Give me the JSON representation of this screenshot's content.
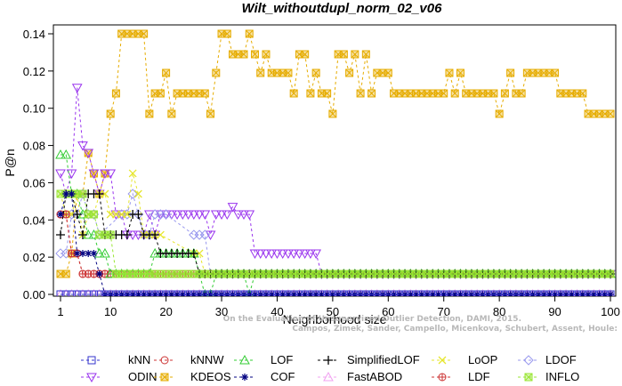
{
  "chart_data": {
    "type": "line",
    "title": "Wilt_withoutdupl_norm_02_v06",
    "xlabel": "Neighborhood size",
    "ylabel": "P@n",
    "xlim": [
      1,
      100
    ],
    "ylim": [
      0,
      0.145
    ],
    "xticks": [
      1,
      10,
      20,
      30,
      40,
      50,
      60,
      70,
      80,
      90,
      100
    ],
    "yticks": [
      0.0,
      0.02,
      0.04,
      0.06,
      0.08,
      0.1,
      0.12,
      0.14
    ],
    "ytick_labels": [
      "0.00",
      "0.02",
      "0.04",
      "0.06",
      "0.08",
      "0.10",
      "0.12",
      "0.14"
    ],
    "grid": false,
    "legend_position": "bottom",
    "credit_lines": [
      "Campos, Zimek, Sander, Campello, Micenkova, Schubert, Assent, Houle:",
      "On the Evaluation of Unsupervised Outlier Detection, DAMI, 2015."
    ],
    "series": [
      {
        "name": "kNN",
        "color": "#3333cc",
        "marker": "square",
        "points": [
          [
            1,
            0
          ],
          [
            100,
            0
          ]
        ]
      },
      {
        "name": "kNNW",
        "color": "#cc3333",
        "marker": "circle",
        "points": [
          [
            1,
            0.043
          ],
          [
            2,
            0.043
          ],
          [
            3,
            0.022
          ],
          [
            4,
            0.022
          ],
          [
            5,
            0.011
          ],
          [
            6,
            0.011
          ],
          [
            8,
            0.011
          ],
          [
            10,
            0.011
          ],
          [
            100,
            0.011
          ]
        ]
      },
      {
        "name": "LOF",
        "color": "#33cc33",
        "marker": "triangle",
        "points": [
          [
            1,
            0.075
          ],
          [
            2,
            0.075
          ],
          [
            3,
            0.054
          ],
          [
            4,
            0.054
          ],
          [
            5,
            0.043
          ],
          [
            6,
            0.032
          ],
          [
            7,
            0.032
          ],
          [
            8,
            0.022
          ],
          [
            9,
            0.022
          ],
          [
            10,
            0.011
          ],
          [
            16,
            0.011
          ],
          [
            17,
            0.011
          ],
          [
            18,
            0.022
          ],
          [
            25,
            0.022
          ],
          [
            26,
            0.011
          ],
          [
            27,
            0
          ],
          [
            28,
            0
          ],
          [
            29,
            0.011
          ],
          [
            34,
            0.011
          ],
          [
            35,
            0
          ],
          [
            36,
            0.011
          ],
          [
            100,
            0.011
          ]
        ]
      },
      {
        "name": "SimplifiedLOF",
        "color": "#000000",
        "marker": "plus",
        "points": [
          [
            1,
            0.032
          ],
          [
            2,
            0.054
          ],
          [
            3,
            0.054
          ],
          [
            4,
            0.043
          ],
          [
            5,
            0.032
          ],
          [
            6,
            0.054
          ],
          [
            7,
            0.054
          ],
          [
            8,
            0.054
          ],
          [
            9,
            0.032
          ],
          [
            10,
            0.032
          ],
          [
            13,
            0.032
          ],
          [
            14,
            0.043
          ],
          [
            15,
            0.043
          ],
          [
            16,
            0.032
          ],
          [
            18,
            0.032
          ],
          [
            19,
            0.022
          ],
          [
            25,
            0.022
          ],
          [
            26,
            0.011
          ],
          [
            100,
            0.011
          ]
        ]
      },
      {
        "name": "LoOP",
        "color": "#e6e62e",
        "marker": "x",
        "points": [
          [
            1,
            0.054
          ],
          [
            2,
            0.043
          ],
          [
            3,
            0.043
          ],
          [
            4,
            0.054
          ],
          [
            5,
            0.032
          ],
          [
            6,
            0.043
          ],
          [
            7,
            0.043
          ],
          [
            8,
            0.054
          ],
          [
            9,
            0.054
          ],
          [
            10,
            0.043
          ],
          [
            13,
            0.043
          ],
          [
            14,
            0.065
          ],
          [
            15,
            0.054
          ],
          [
            16,
            0.032
          ],
          [
            18,
            0.032
          ],
          [
            19,
            0.032
          ],
          [
            25,
            0.022
          ],
          [
            26,
            0.022
          ],
          [
            27,
            0.011
          ],
          [
            100,
            0.011
          ]
        ]
      },
      {
        "name": "LDOF",
        "color": "#9999ee",
        "marker": "diamond",
        "points": [
          [
            1,
            0.022
          ],
          [
            2,
            0.022
          ],
          [
            3,
            0.043
          ],
          [
            4,
            0.043
          ],
          [
            5,
            0.054
          ],
          [
            6,
            0.043
          ],
          [
            7,
            0.043
          ],
          [
            8,
            0.032
          ],
          [
            12,
            0.043
          ],
          [
            13,
            0.043
          ],
          [
            14,
            0.054
          ],
          [
            15,
            0.043
          ],
          [
            16,
            0.032
          ],
          [
            17,
            0.032
          ],
          [
            18,
            0.043
          ],
          [
            19,
            0.043
          ],
          [
            20,
            0.043
          ],
          [
            25,
            0.032
          ],
          [
            26,
            0.032
          ],
          [
            27,
            0.032
          ],
          [
            28,
            0.011
          ],
          [
            100,
            0.011
          ]
        ]
      },
      {
        "name": "ODIN",
        "color": "#9933ee",
        "marker": "triangle-down",
        "points": [
          [
            1,
            0.065
          ],
          [
            2,
            0.054
          ],
          [
            3,
            0.065
          ],
          [
            4,
            0.111
          ],
          [
            5,
            0.08
          ],
          [
            6,
            0.076
          ],
          [
            7,
            0.065
          ],
          [
            8,
            0.054
          ],
          [
            9,
            0.065
          ],
          [
            10,
            0.065
          ],
          [
            11,
            0.043
          ],
          [
            12,
            0.043
          ],
          [
            13,
            0.032
          ],
          [
            14,
            0.032
          ],
          [
            15,
            0.032
          ],
          [
            16,
            0.032
          ],
          [
            17,
            0.043
          ],
          [
            18,
            0.032
          ],
          [
            19,
            0.043
          ],
          [
            20,
            0.043
          ],
          [
            21,
            0.043
          ],
          [
            22,
            0.043
          ],
          [
            23,
            0.043
          ],
          [
            24,
            0.043
          ],
          [
            25,
            0.043
          ],
          [
            26,
            0.043
          ],
          [
            27,
            0.043
          ],
          [
            28,
            0.032
          ],
          [
            29,
            0.043
          ],
          [
            30,
            0.043
          ],
          [
            31,
            0.043
          ],
          [
            32,
            0.047
          ],
          [
            33,
            0.043
          ],
          [
            34,
            0.043
          ],
          [
            35,
            0.043
          ],
          [
            36,
            0.022
          ],
          [
            37,
            0.022
          ],
          [
            38,
            0.022
          ],
          [
            39,
            0.022
          ],
          [
            40,
            0.022
          ],
          [
            41,
            0.022
          ],
          [
            42,
            0.022
          ],
          [
            43,
            0.022
          ],
          [
            44,
            0.022
          ],
          [
            45,
            0.022
          ],
          [
            46,
            0.022
          ],
          [
            47,
            0.022
          ],
          [
            48,
            0.011
          ],
          [
            100,
            0.011
          ]
        ]
      },
      {
        "name": "KDEOS",
        "color": "#e6ac00",
        "marker": "square-x",
        "points": [
          [
            1,
            0.011
          ],
          [
            2,
            0.011
          ],
          [
            3,
            0.022
          ],
          [
            4,
            0.054
          ],
          [
            5,
            0.054
          ],
          [
            6,
            0.076
          ],
          [
            7,
            0.065
          ],
          [
            8,
            0.054
          ],
          [
            9,
            0.065
          ],
          [
            10,
            0.097
          ],
          [
            11,
            0.108
          ],
          [
            12,
            0.14
          ],
          [
            16,
            0.14
          ],
          [
            17,
            0.097
          ],
          [
            18,
            0.108
          ],
          [
            19,
            0.108
          ],
          [
            20,
            0.119
          ],
          [
            21,
            0.097
          ],
          [
            22,
            0.108
          ],
          [
            23,
            0.108
          ],
          [
            24,
            0.108
          ],
          [
            25,
            0.108
          ],
          [
            26,
            0.108
          ],
          [
            27,
            0.108
          ],
          [
            28,
            0.097
          ],
          [
            29,
            0.119
          ],
          [
            30,
            0.14
          ],
          [
            31,
            0.14
          ],
          [
            32,
            0.129
          ],
          [
            33,
            0.129
          ],
          [
            34,
            0.129
          ],
          [
            35,
            0.14
          ],
          [
            36,
            0.129
          ],
          [
            37,
            0.119
          ],
          [
            38,
            0.129
          ],
          [
            39,
            0.119
          ],
          [
            40,
            0.119
          ],
          [
            41,
            0.119
          ],
          [
            42,
            0.119
          ],
          [
            43,
            0.108
          ],
          [
            44,
            0.129
          ],
          [
            45,
            0.129
          ],
          [
            46,
            0.108
          ],
          [
            47,
            0.119
          ],
          [
            48,
            0.108
          ],
          [
            49,
            0.108
          ],
          [
            50,
            0.097
          ],
          [
            51,
            0.129
          ],
          [
            52,
            0.129
          ],
          [
            53,
            0.119
          ],
          [
            54,
            0.129
          ],
          [
            55,
            0.108
          ],
          [
            56,
            0.129
          ],
          [
            57,
            0.108
          ],
          [
            58,
            0.119
          ],
          [
            59,
            0.119
          ],
          [
            60,
            0.119
          ],
          [
            61,
            0.108
          ],
          [
            62,
            0.108
          ],
          [
            70,
            0.108
          ],
          [
            71,
            0.119
          ],
          [
            72,
            0.108
          ],
          [
            73,
            0.119
          ],
          [
            74,
            0.108
          ],
          [
            75,
            0.108
          ],
          [
            76,
            0.108
          ],
          [
            77,
            0.108
          ],
          [
            78,
            0.108
          ],
          [
            79,
            0.108
          ],
          [
            80,
            0.097
          ],
          [
            81,
            0.108
          ],
          [
            82,
            0.119
          ],
          [
            83,
            0.108
          ],
          [
            84,
            0.108
          ],
          [
            85,
            0.119
          ],
          [
            90,
            0.119
          ],
          [
            91,
            0.108
          ],
          [
            95,
            0.108
          ],
          [
            96,
            0.097
          ],
          [
            100,
            0.097
          ],
          [
            101,
            0.108
          ]
        ]
      },
      {
        "name": "COF",
        "color": "#000080",
        "marker": "asterisk",
        "points": [
          [
            1,
            0.043
          ],
          [
            2,
            0.054
          ],
          [
            3,
            0.054
          ],
          [
            4,
            0.022
          ],
          [
            5,
            0.022
          ],
          [
            6,
            0.022
          ],
          [
            7,
            0.022
          ],
          [
            8,
            0.011
          ],
          [
            9,
            0
          ],
          [
            10,
            0
          ],
          [
            11,
            0
          ],
          [
            100,
            0
          ]
        ]
      },
      {
        "name": "FastABOD",
        "color": "#f0a0f0",
        "marker": "triangle",
        "points": [
          [
            1,
            0
          ],
          [
            100,
            0
          ]
        ]
      },
      {
        "name": "LDF",
        "color": "#cc3333",
        "marker": "circle-plus",
        "points": [
          [
            1,
            0.043
          ],
          [
            2,
            0.043
          ],
          [
            3,
            0.022
          ],
          [
            4,
            0.022
          ],
          [
            5,
            0.011
          ],
          [
            100,
            0.011
          ]
        ]
      },
      {
        "name": "INFLO",
        "color": "#99e633",
        "marker": "square-x",
        "points": [
          [
            1,
            0.054
          ],
          [
            2,
            0.054
          ],
          [
            3,
            0.054
          ],
          [
            4,
            0.054
          ],
          [
            5,
            0.054
          ],
          [
            6,
            0.043
          ],
          [
            7,
            0.043
          ],
          [
            8,
            0.032
          ],
          [
            9,
            0.032
          ],
          [
            10,
            0.032
          ],
          [
            11,
            0.011
          ],
          [
            12,
            0.011
          ],
          [
            13,
            0.011
          ],
          [
            14,
            0.011
          ],
          [
            15,
            0.011
          ],
          [
            16,
            0.011
          ],
          [
            17,
            0.011
          ],
          [
            18,
            0.011
          ],
          [
            19,
            0.011
          ],
          [
            100,
            0.011
          ]
        ]
      }
    ],
    "legend": [
      {
        "name": "kNN",
        "color": "#3333cc",
        "marker": "square"
      },
      {
        "name": "kNNW",
        "color": "#cc3333",
        "marker": "circle"
      },
      {
        "name": "LOF",
        "color": "#33cc33",
        "marker": "triangle"
      },
      {
        "name": "SimplifiedLOF",
        "color": "#000000",
        "marker": "plus"
      },
      {
        "name": "LoOP",
        "color": "#e6e62e",
        "marker": "x"
      },
      {
        "name": "LDOF",
        "color": "#9999ee",
        "marker": "diamond"
      },
      {
        "name": "ODIN",
        "color": "#9933ee",
        "marker": "triangle-down"
      },
      {
        "name": "KDEOS",
        "color": "#e6ac00",
        "marker": "square-x"
      },
      {
        "name": "COF",
        "color": "#000080",
        "marker": "asterisk"
      },
      {
        "name": "FastABOD",
        "color": "#f0a0f0",
        "marker": "triangle"
      },
      {
        "name": "LDF",
        "color": "#cc3333",
        "marker": "circle-plus"
      },
      {
        "name": "INFLO",
        "color": "#99e633",
        "marker": "square-x"
      }
    ]
  }
}
